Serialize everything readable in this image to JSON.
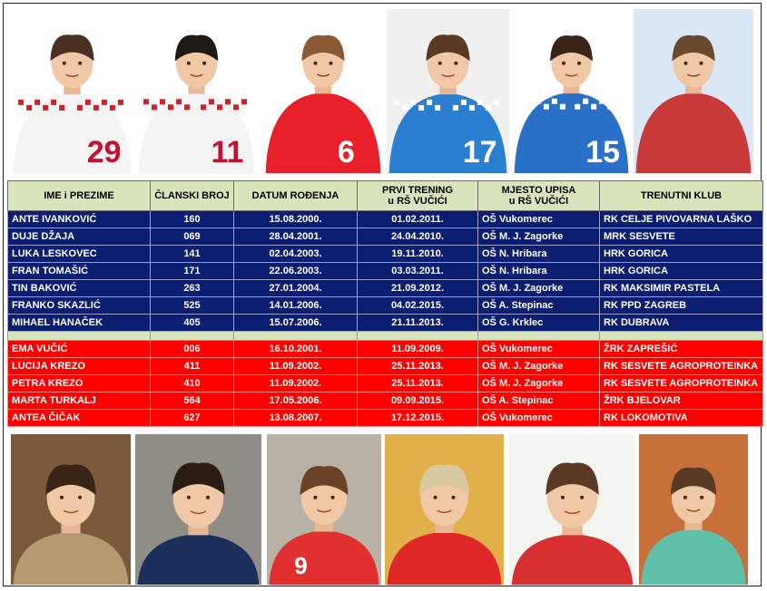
{
  "table": {
    "headers": [
      {
        "line1": "IME i PREZIME",
        "line2": ""
      },
      {
        "line1": "ČLANSKI BROJ",
        "line2": ""
      },
      {
        "line1": "DATUM ROĐENJA",
        "line2": ""
      },
      {
        "line1": "PRVI TRENING",
        "line2": "u RŠ VUČIĆI"
      },
      {
        "line1": "MJESTO UPISA",
        "line2": "u RŠ VUČIĆI"
      },
      {
        "line1": "TRENUTNI KLUB",
        "line2": ""
      }
    ],
    "boys": [
      [
        "ANTE IVANKOVIĆ",
        "160",
        "15.08.2000.",
        "01.02.2011.",
        "OŠ  Vukomerec",
        "RK CELJE PIVOVARNA LAŠKO"
      ],
      [
        "DUJE DŽAJA",
        "069",
        "28.04.2001.",
        "24.04.2010.",
        "OŠ  M. J. Zagorke",
        "MRK SESVETE"
      ],
      [
        "LUKA LESKOVEC",
        "141",
        "02.04.2003.",
        "19.11.2010.",
        "OŠ  N. Hribara",
        "HRK GORICA"
      ],
      [
        "FRAN TOMAŠIĆ",
        "171",
        "22.06.2003.",
        "03.03.2011.",
        "OŠ  N. Hribara",
        "HRK GORICA"
      ],
      [
        "TIN BAKOVIĆ",
        "263",
        "27.01.2004.",
        "21.09.2012.",
        "OŠ  M. J. Zagorke",
        "RK MAKSIMIR PASTELA"
      ],
      [
        "FRANKO SKAZLIĆ",
        "525",
        "14.01.2006.",
        "04.02.2015.",
        "OŠ  A. Stepinac",
        "RK PPD ZAGREB"
      ],
      [
        "MIHAEL HANAČEK",
        "405",
        "15.07.2006.",
        "21.11.2013.",
        "OŠ  G. Krklec",
        "RK DUBRAVA"
      ]
    ],
    "girls": [
      [
        "EMA VUČIĆ",
        "006",
        "16.10.2001.",
        "11.09.2009.",
        "OŠ  Vukomerec",
        "ŽRK ZAPREŠIĆ"
      ],
      [
        "LUCIJA KREZO",
        "411",
        "11.09.2002.",
        "25.11.2013.",
        "OŠ  M. J. Zagorke",
        "RK SESVETE  AGROPROTEINKA"
      ],
      [
        "PETRA KREZO",
        "410",
        "11.09.2002.",
        "25.11.2013.",
        "OŠ  M. J. Zagorke",
        "RK SESVETE  AGROPROTEINKA"
      ],
      [
        "MARTA TURKALJ",
        "564",
        "17.05.2006.",
        "09.09.2015.",
        "OŠ  A. Stepinac",
        "ŽRK BJELOVAR"
      ],
      [
        "ANTEA ČIČAK",
        "627",
        "13.08.2007.",
        "17.12.2015.",
        "OŠ  Vukomerec",
        "RK LOKOMOTIVA"
      ]
    ]
  },
  "top_photos": [
    {
      "name": "player-photo-1",
      "jersey": "29",
      "kit": "white-checkered",
      "bg": "#ffffff",
      "shirt": "#f4f4f4",
      "number_color": "#c8102e",
      "hair": "#4a3020"
    },
    {
      "name": "player-photo-2",
      "jersey": "11",
      "kit": "white-checkered",
      "bg": "#ffffff",
      "shirt": "#f4f4f4",
      "number_color": "#c8102e",
      "hair": "#1f1a16"
    },
    {
      "name": "player-photo-3",
      "jersey": "6",
      "kit": "red",
      "bg": "#ffffff",
      "shirt": "#e8202a",
      "number_color": "#ffffff",
      "hair": "#8a5a34"
    },
    {
      "name": "player-photo-4",
      "jersey": "17",
      "kit": "blue-checkered",
      "bg": "#f0f0f0",
      "shirt": "#2a7fd0",
      "number_color": "#ffffff",
      "hair": "#5a3a22"
    },
    {
      "name": "player-photo-5",
      "jersey": "15",
      "kit": "blue-checkered",
      "bg": "#ffffff",
      "shirt": "#2a6fc8",
      "number_color": "#ffffff",
      "hair": "#3a2418"
    },
    {
      "name": "player-photo-6",
      "jersey": "",
      "kit": "red-interview",
      "bg": "#d9e8f4",
      "shirt": "#c93a3a",
      "number_color": "#ffffff",
      "hair": "#6a4a2e"
    }
  ],
  "bottom_photos": [
    {
      "name": "child-photo-1",
      "jersey": "",
      "bg": "#7a5a3a",
      "shirt": "#b89a70",
      "number_color": "#ffffff",
      "hair": "#3a2416"
    },
    {
      "name": "child-photo-2",
      "jersey": "",
      "bg": "#8e8e86",
      "shirt": "#1c2e5a",
      "number_color": "#ffffff",
      "hair": "#2a1c14"
    },
    {
      "name": "child-photo-3",
      "jersey": "9",
      "bg": "#b8b2a6",
      "shirt": "#e03030",
      "number_color": "#ffffff",
      "hair": "#6a4226"
    },
    {
      "name": "child-photo-4",
      "jersey": "",
      "bg": "#e2b048",
      "shirt": "#e02828",
      "number_color": "#ffffff",
      "hair": "#d8c8a0"
    },
    {
      "name": "child-photo-5",
      "jersey": "",
      "bg": "#f4f4f0",
      "shirt": "#d83030",
      "number_color": "#ffffff",
      "hair": "#5a3a24"
    },
    {
      "name": "child-photo-6",
      "jersey": "",
      "bg": "#c8703a",
      "shirt": "#5ec0a8",
      "number_color": "#ffffff",
      "hair": "#5a3a24"
    }
  ],
  "colors": {
    "header_bg": "#d8e4bc",
    "boys_row_bg": "#0c1e72",
    "girls_row_bg": "#ff0000",
    "row_text": "#ffffff"
  }
}
